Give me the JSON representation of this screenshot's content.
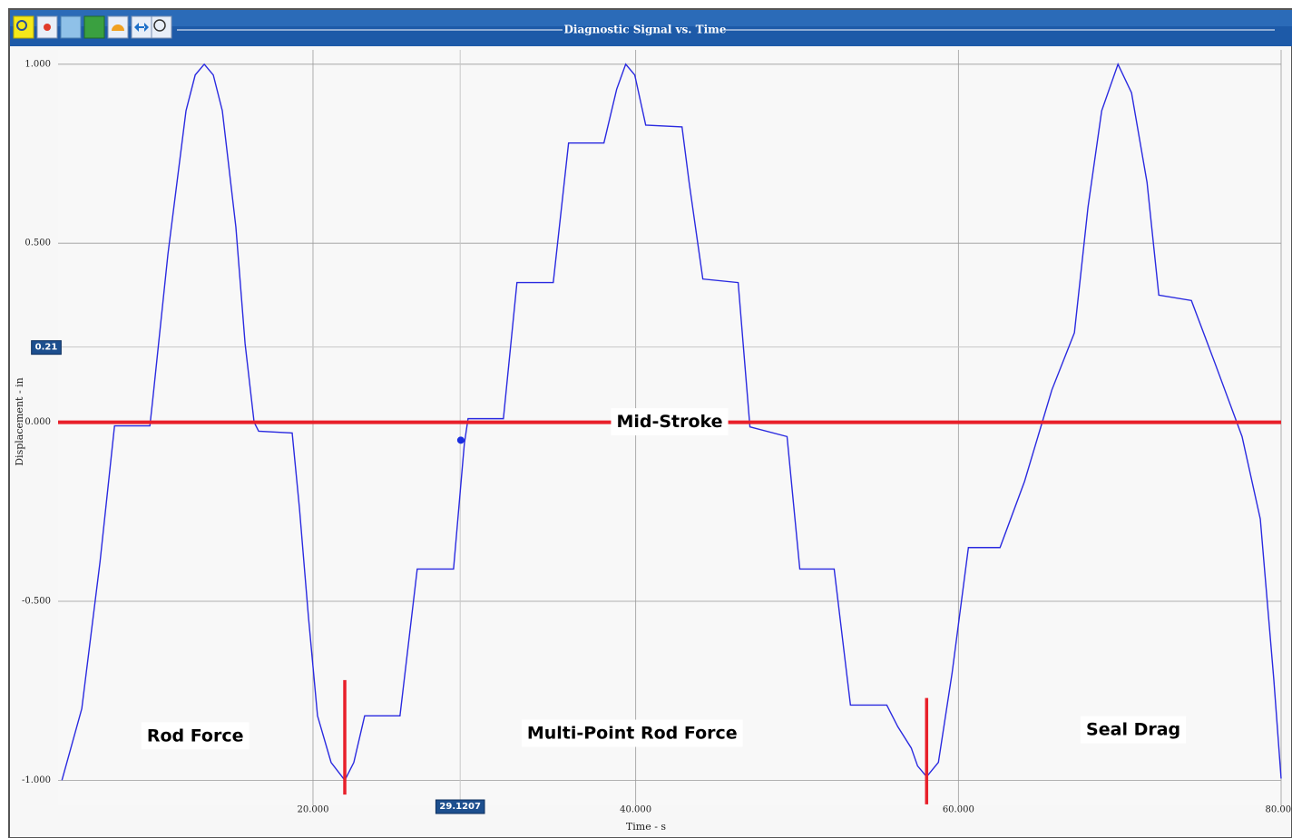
{
  "chart_data": {
    "type": "line",
    "title": "Diagnostic Signal vs. Time",
    "x_label": "Time - s",
    "y_label": "Displacement - in",
    "x": [
      4.44,
      5.67,
      6.8,
      7.7,
      9.89,
      10.06,
      11.01,
      12.13,
      12.7,
      13.26,
      13.82,
      14.38,
      15.22,
      15.79,
      16.35,
      16.63,
      18.71,
      19.16,
      19.72,
      20.28,
      21.12,
      21.97,
      22.53,
      23.2,
      25.39,
      26.46,
      28.71,
      29.38,
      29.61,
      31.8,
      32.64,
      34.89,
      35.84,
      38.03,
      38.82,
      39.38,
      39.94,
      40.62,
      42.87,
      43.31,
      44.16,
      46.35,
      47.08,
      49.38,
      50.17,
      52.3,
      53.31,
      55.56,
      56.24,
      57.08,
      57.47,
      58.03,
      58.76,
      59.61,
      60.62,
      62.58,
      64.1,
      65.79,
      67.19,
      68.03,
      68.88,
      69.89,
      70.73,
      71.69,
      72.42,
      74.44,
      75.9,
      77.58,
      78.71,
      79.55,
      80
    ],
    "series": [
      {
        "color": "#2a2ae0",
        "values": [
          -1.0,
          -0.8,
          -0.39,
          -0.01,
          -0.01,
          0.06,
          0.47,
          0.87,
          0.97,
          1.0,
          0.97,
          0.87,
          0.545,
          0.22,
          0.0,
          -0.025,
          -0.03,
          -0.24,
          -0.545,
          -0.82,
          -0.95,
          -1.0,
          -0.95,
          -0.82,
          -0.82,
          -0.41,
          -0.41,
          -0.06,
          0.01,
          0.01,
          0.39,
          0.39,
          0.78,
          0.78,
          0.93,
          1.0,
          0.97,
          0.83,
          0.825,
          0.67,
          0.4,
          0.39,
          -0.013,
          -0.04,
          -0.41,
          -0.41,
          -0.79,
          -0.79,
          -0.85,
          -0.91,
          -0.96,
          -0.99,
          -0.95,
          -0.7,
          -0.35,
          -0.35,
          -0.165,
          0.09,
          0.25,
          0.6,
          0.87,
          1.0,
          0.92,
          0.67,
          0.355,
          0.34,
          0.165,
          -0.04,
          -0.27,
          -0.72,
          -0.995
        ]
      }
    ],
    "xlim": [
      4.2,
      80
    ],
    "ylim": [
      -1.07,
      1.04
    ],
    "xticks": [
      {
        "value": 20,
        "label": "20.000"
      },
      {
        "value": 40,
        "label": "40.000"
      },
      {
        "value": 60,
        "label": "60.000"
      },
      {
        "value": 80,
        "label": "80.000"
      }
    ],
    "yticks": [
      {
        "value": 1,
        "label": "1.000"
      },
      {
        "value": 0.5,
        "label": "0.500"
      },
      {
        "value": 0,
        "label": "0.000"
      },
      {
        "value": -0.5,
        "label": "-0.500"
      },
      {
        "value": -1,
        "label": "-1.000"
      }
    ],
    "grid": true,
    "reference_line": {
      "y": 0,
      "label": "Mid-Stroke",
      "color": "#e8202a"
    },
    "markers": [
      {
        "x": 21.97,
        "y": [
          -0.72,
          -1.04
        ],
        "color": "#e8202a"
      },
      {
        "x": 58.03,
        "y": [
          -0.77,
          -1.067
        ],
        "color": "#e8202a"
      }
    ],
    "annotations": [
      {
        "text": "Rod Force",
        "x": 12.7,
        "y": -0.877
      },
      {
        "text": "Multi-Point Rod Force",
        "x": 39.78,
        "y": -0.87
      },
      {
        "text": "Seal Drag",
        "x": 70.84,
        "y": -0.86
      }
    ],
    "cursor": {
      "x": 29.1207,
      "y": 0.21,
      "point_x": 29.16,
      "point_y": -0.05
    }
  }
}
